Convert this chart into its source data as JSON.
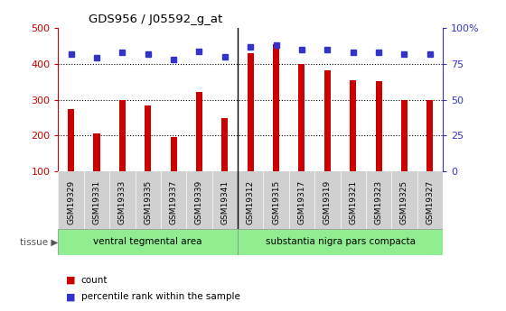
{
  "title": "GDS956 / J05592_g_at",
  "samples": [
    "GSM19329",
    "GSM19331",
    "GSM19333",
    "GSM19335",
    "GSM19337",
    "GSM19339",
    "GSM19341",
    "GSM19312",
    "GSM19315",
    "GSM19317",
    "GSM19319",
    "GSM19321",
    "GSM19323",
    "GSM19325",
    "GSM19327"
  ],
  "counts": [
    275,
    205,
    300,
    283,
    197,
    322,
    248,
    430,
    455,
    400,
    382,
    355,
    352,
    300,
    300
  ],
  "percentiles": [
    82,
    79,
    83,
    82,
    78,
    84,
    80,
    87,
    88,
    85,
    85,
    83,
    83,
    82,
    82
  ],
  "tissue_groups": [
    {
      "label": "ventral tegmental area",
      "start": 0,
      "end": 7,
      "color": "#90EE90"
    },
    {
      "label": "substantia nigra pars compacta",
      "start": 7,
      "end": 15,
      "color": "#90EE90"
    }
  ],
  "bar_color": "#CC0000",
  "dot_color": "#3333CC",
  "ylim_left": [
    100,
    500
  ],
  "ylim_right": [
    0,
    100
  ],
  "yticks_left": [
    100,
    200,
    300,
    400,
    500
  ],
  "yticks_right": [
    0,
    25,
    50,
    75,
    100
  ],
  "ytick_labels_right": [
    "0",
    "25",
    "50",
    "75",
    "100%"
  ],
  "grid_values": [
    200,
    300,
    400
  ],
  "bg_color": "#ffffff",
  "xtick_bg_color": "#d0d0d0",
  "tissue_label": "tissue",
  "legend_count_label": "count",
  "legend_pct_label": "percentile rank within the sample",
  "group_divider": 6.5,
  "n_samples": 15
}
